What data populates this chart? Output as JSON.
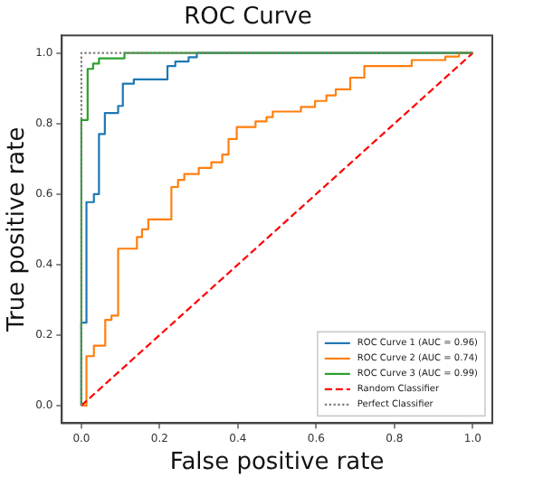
{
  "chart_data": {
    "type": "line",
    "title": "ROC Curve",
    "xlabel": "False positive rate",
    "ylabel": "True positive rate",
    "xlim": [
      -0.05,
      1.05
    ],
    "ylim": [
      -0.05,
      1.05
    ],
    "xticks": [
      {
        "value": 0,
        "label": "0.0"
      },
      {
        "value": 0.2,
        "label": "0.2"
      },
      {
        "value": 0.4,
        "label": "0.4"
      },
      {
        "value": 0.6,
        "label": "0.6"
      },
      {
        "value": 0.8,
        "label": "0.8"
      },
      {
        "value": 1,
        "label": "1.0"
      }
    ],
    "yticks": [
      {
        "value": 0,
        "label": "0.0"
      },
      {
        "value": 0.2,
        "label": "0.2"
      },
      {
        "value": 0.4,
        "label": "0.4"
      },
      {
        "value": 0.6,
        "label": "0.6"
      },
      {
        "value": 0.8,
        "label": "0.8"
      },
      {
        "value": 1,
        "label": "1.0"
      }
    ],
    "grid": false,
    "legend": "bottom right",
    "marker": "none",
    "series": [
      {
        "name": "ROC Curve 1 (AUC = 0.96)",
        "color": "#1f77b4",
        "line_style": "solid",
        "x": [
          0,
          0,
          0.013,
          0.013,
          0.032,
          0.032,
          0.045,
          0.045,
          0.06,
          0.06,
          0.094,
          0.094,
          0.106,
          0.106,
          0.134,
          0.134,
          0.22,
          0.22,
          0.24,
          0.24,
          0.274,
          0.274,
          0.295,
          0.295,
          1
        ],
        "values": [
          0,
          0.235,
          0.235,
          0.577,
          0.577,
          0.6,
          0.6,
          0.77,
          0.77,
          0.83,
          0.83,
          0.85,
          0.85,
          0.913,
          0.913,
          0.925,
          0.925,
          0.963,
          0.963,
          0.976,
          0.976,
          0.988,
          0.988,
          1,
          1
        ]
      },
      {
        "name": "ROC Curve 2 (AUC = 0.74)",
        "color": "#ff7f0e",
        "line_style": "solid",
        "x": [
          0,
          0.013,
          0.013,
          0.032,
          0.032,
          0.061,
          0.061,
          0.077,
          0.077,
          0.094,
          0.094,
          0.142,
          0.142,
          0.155,
          0.155,
          0.171,
          0.171,
          0.23,
          0.23,
          0.247,
          0.247,
          0.263,
          0.263,
          0.3,
          0.3,
          0.332,
          0.332,
          0.36,
          0.36,
          0.376,
          0.376,
          0.397,
          0.397,
          0.445,
          0.445,
          0.473,
          0.473,
          0.489,
          0.489,
          0.561,
          0.561,
          0.597,
          0.597,
          0.626,
          0.626,
          0.65,
          0.65,
          0.687,
          0.687,
          0.723,
          0.723,
          0.844,
          0.844,
          0.93,
          0.93,
          0.965,
          0.965,
          1
        ],
        "values": [
          0,
          0,
          0.14,
          0.14,
          0.17,
          0.17,
          0.243,
          0.243,
          0.255,
          0.255,
          0.445,
          0.445,
          0.478,
          0.478,
          0.5,
          0.5,
          0.528,
          0.528,
          0.62,
          0.62,
          0.64,
          0.64,
          0.657,
          0.657,
          0.674,
          0.674,
          0.69,
          0.69,
          0.712,
          0.712,
          0.756,
          0.756,
          0.79,
          0.79,
          0.806,
          0.806,
          0.818,
          0.818,
          0.834,
          0.834,
          0.847,
          0.847,
          0.864,
          0.864,
          0.88,
          0.88,
          0.897,
          0.897,
          0.93,
          0.93,
          0.963,
          0.963,
          0.98,
          0.98,
          0.99,
          0.99,
          1,
          1
        ]
      },
      {
        "name": "ROC Curve 3 (AUC = 0.99)",
        "color": "#2ca02c",
        "line_style": "solid",
        "x": [
          0,
          0,
          0.016,
          0.016,
          0.03,
          0.03,
          0.045,
          0.045,
          0.11,
          0.11,
          1
        ],
        "values": [
          0,
          0.81,
          0.81,
          0.955,
          0.955,
          0.97,
          0.97,
          0.985,
          0.985,
          1,
          1
        ]
      },
      {
        "name": "Random Classifier",
        "color": "#ff0000",
        "line_style": "dashed",
        "x": [
          0,
          1
        ],
        "values": [
          0,
          1
        ]
      },
      {
        "name": "Perfect Classifier",
        "color": "#808080",
        "line_style": "dotted",
        "x": [
          0,
          0,
          1
        ],
        "values": [
          0,
          1,
          1
        ]
      }
    ]
  }
}
